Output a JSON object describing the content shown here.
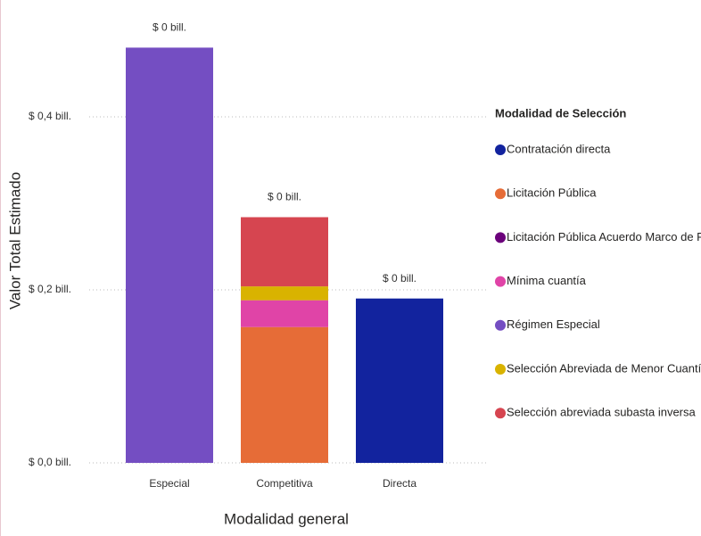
{
  "chart_data": {
    "type": "stacked_bar",
    "y_label": "Valor Total Estimado",
    "x_label": "Modalidad general",
    "categories": [
      "Especial",
      "Competitiva",
      "Directa"
    ],
    "total_labels": [
      "$ 0 bill.",
      "$ 0 bill.",
      "$ 0 bill."
    ],
    "legend_title": "Modalidad de Selección",
    "legend_position": "right",
    "series": [
      {
        "name": "Contratación directa",
        "color": "#12239e",
        "values": [
          null,
          null,
          0.19
        ]
      },
      {
        "name": "Licitación Pública",
        "color": "#e66c37",
        "values": [
          null,
          0.157,
          null
        ]
      },
      {
        "name": "Licitación Pública Acuerdo Marco de P...",
        "color": "#6b007b",
        "values": [
          null,
          null,
          null
        ]
      },
      {
        "name": "Mínima cuantía",
        "color": "#e044a7",
        "values": [
          null,
          0.031,
          null
        ]
      },
      {
        "name": "Régimen Especial",
        "color": "#744ec2",
        "values": [
          0.48,
          null,
          null
        ]
      },
      {
        "name": "Selección Abreviada de Menor Cuantía",
        "color": "#d9b300",
        "values": [
          null,
          0.016,
          null
        ]
      },
      {
        "name": "Selección abreviada subasta inversa",
        "color": "#d64550",
        "values": [
          null,
          0.08,
          null
        ]
      }
    ],
    "ylim": [
      0,
      0.5
    ],
    "yticks": [
      {
        "value": 0,
        "label": "$ 0,0 bill."
      },
      {
        "value": 0.2,
        "label": "$ 0,2 bill."
      },
      {
        "value": 0.4,
        "label": "$ 0,4 bill."
      }
    ],
    "grid": true
  }
}
